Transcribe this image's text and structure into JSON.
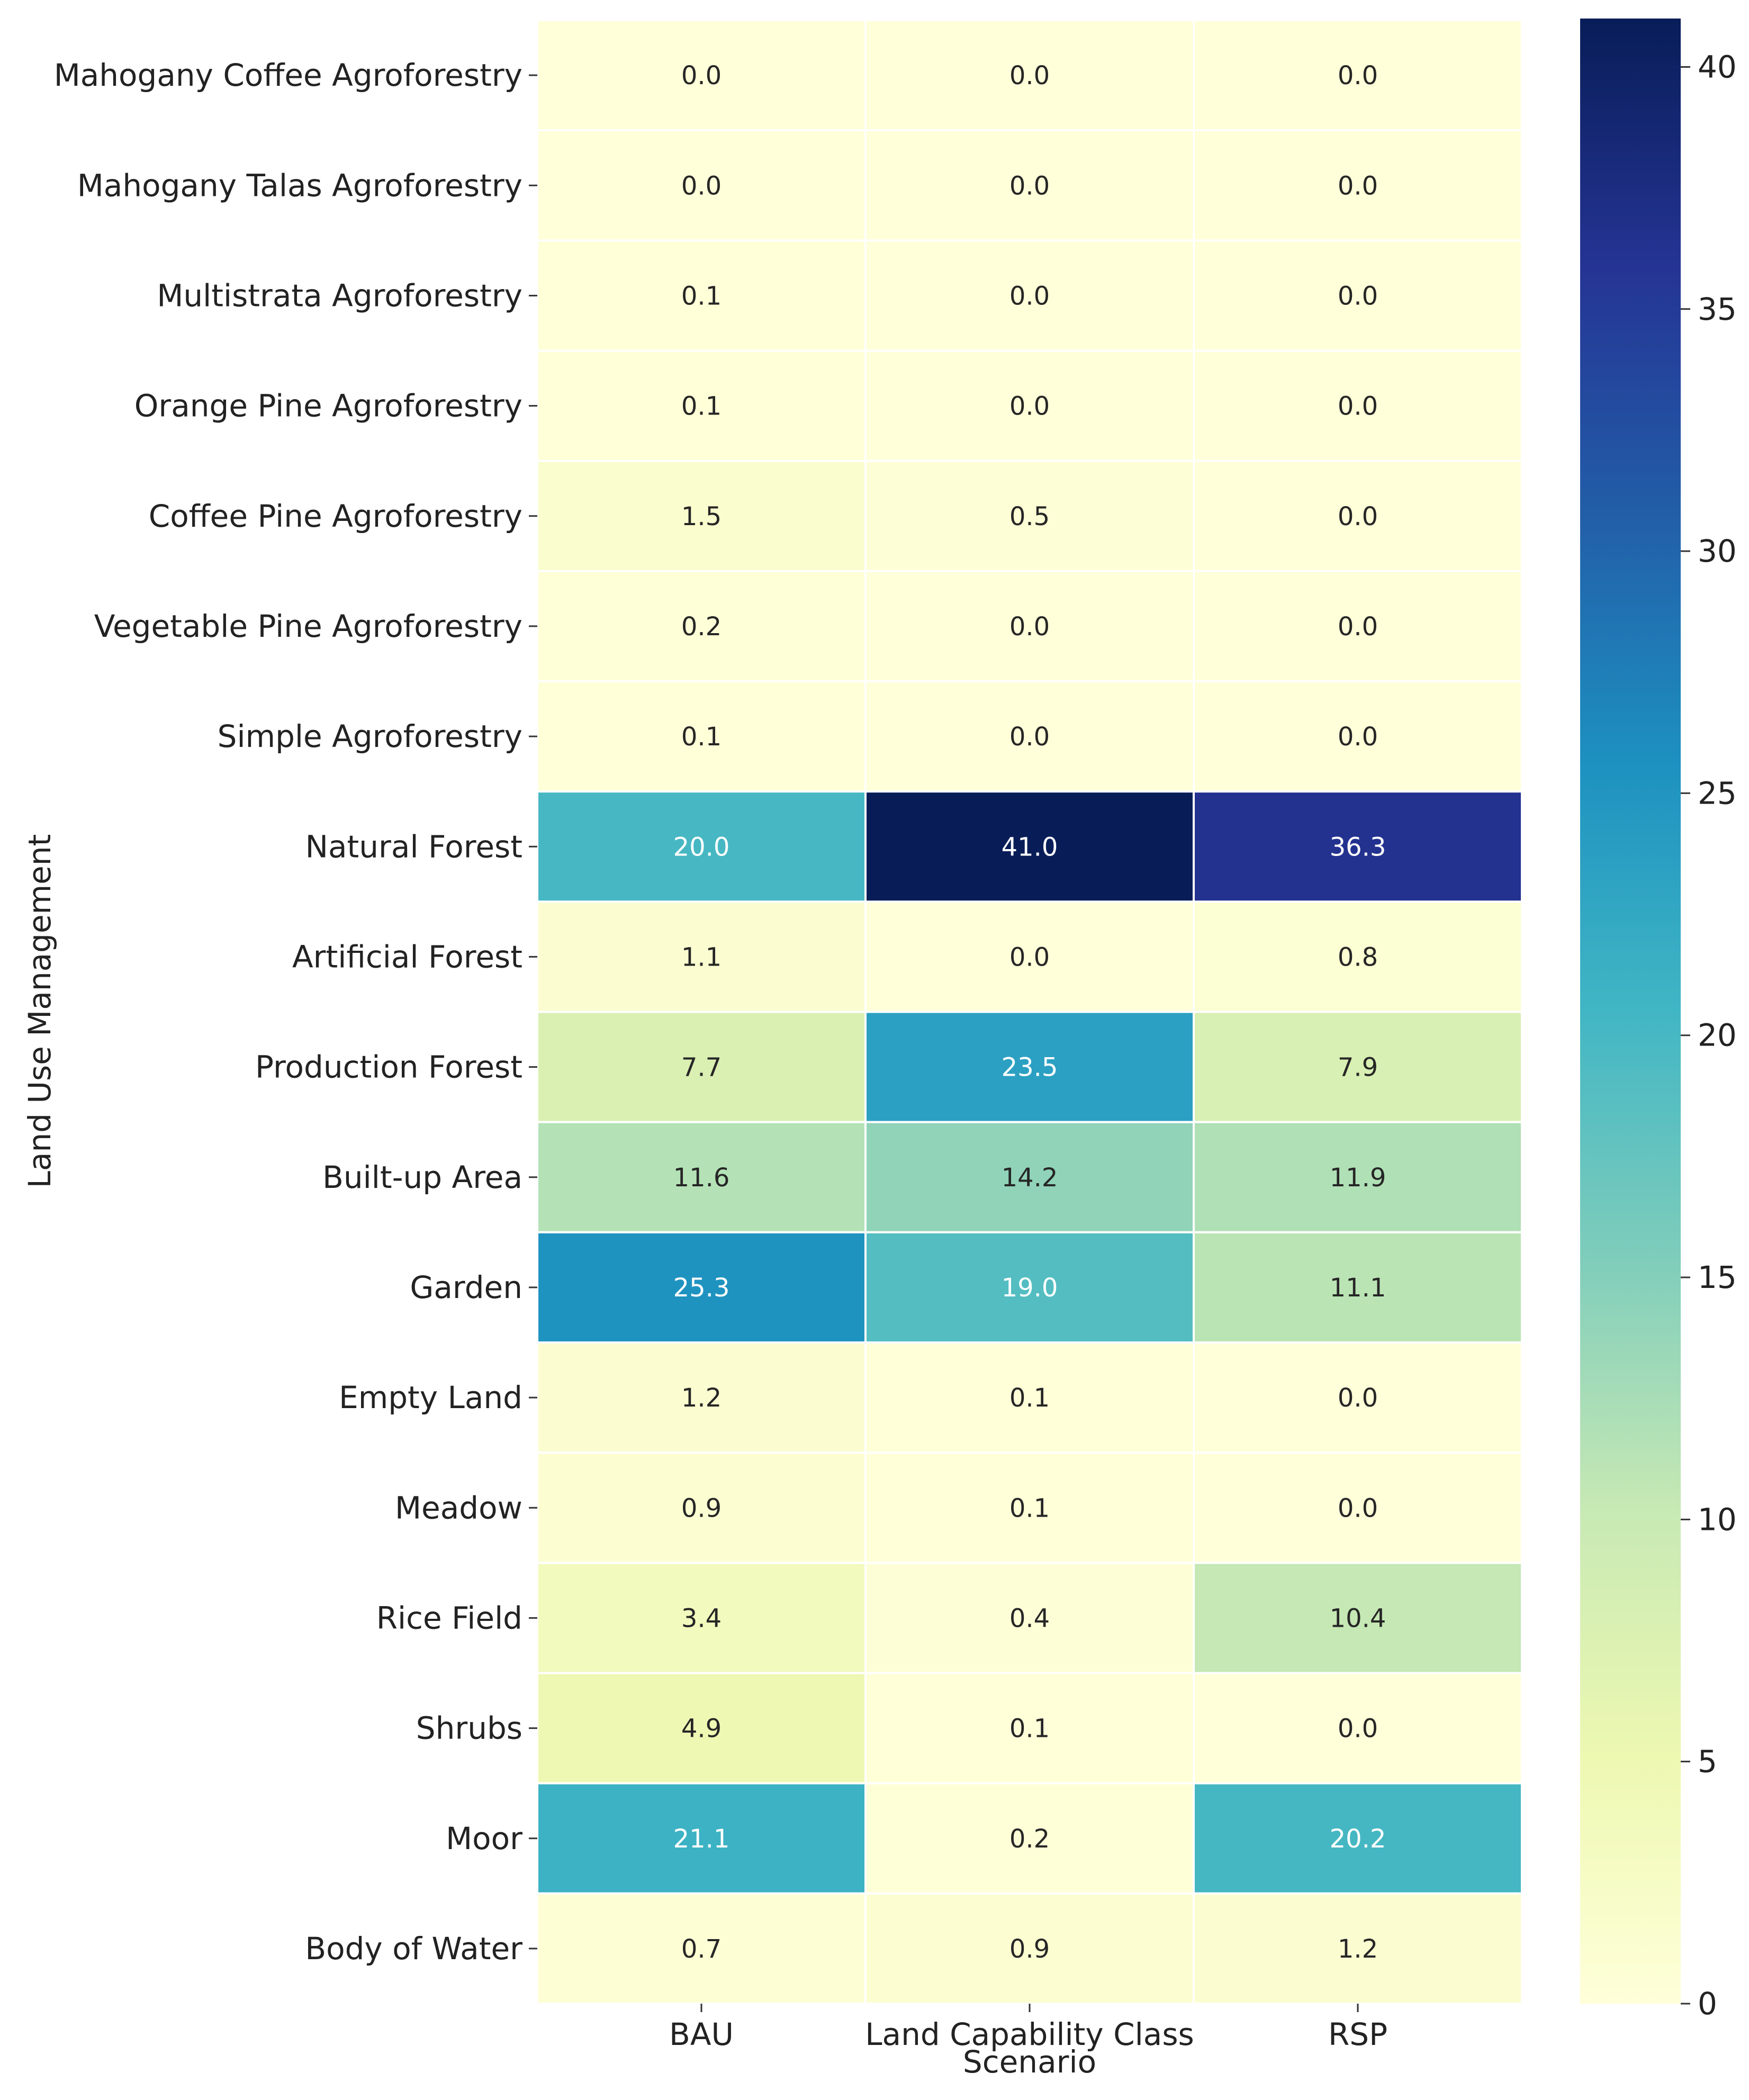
{
  "chart_data": {
    "type": "heatmap",
    "title": "",
    "xlabel": "Scenario",
    "ylabel": "Land Use Management",
    "columns": [
      "BAU",
      "Land Capability Class",
      "RSP"
    ],
    "rows": [
      "Mahogany Coffee Agroforestry",
      "Mahogany Talas Agroforestry",
      "Multistrata Agroforestry",
      "Orange Pine Agroforestry",
      "Coffee Pine Agroforestry",
      "Vegetable Pine Agroforestry",
      "Simple Agroforestry",
      "Natural Forest",
      "Artificial Forest",
      "Production Forest",
      "Built-up Area",
      "Garden",
      "Empty Land",
      "Meadow",
      "Rice Field",
      "Shrubs",
      "Moor",
      "Body of Water"
    ],
    "values": [
      [
        0.0,
        0.0,
        0.0
      ],
      [
        0.0,
        0.0,
        0.0
      ],
      [
        0.1,
        0.0,
        0.0
      ],
      [
        0.1,
        0.0,
        0.0
      ],
      [
        1.5,
        0.5,
        0.0
      ],
      [
        0.2,
        0.0,
        0.0
      ],
      [
        0.1,
        0.0,
        0.0
      ],
      [
        20.0,
        41.0,
        36.3
      ],
      [
        1.1,
        0.0,
        0.8
      ],
      [
        7.7,
        23.5,
        7.9
      ],
      [
        11.6,
        14.2,
        11.9
      ],
      [
        25.3,
        19.0,
        11.1
      ],
      [
        1.2,
        0.1,
        0.0
      ],
      [
        0.9,
        0.1,
        0.0
      ],
      [
        3.4,
        0.4,
        10.4
      ],
      [
        4.9,
        0.1,
        0.0
      ],
      [
        21.1,
        0.2,
        20.2
      ],
      [
        0.7,
        0.9,
        1.2
      ]
    ],
    "value_format": "0.0",
    "colorbar": {
      "colormap": "YlGnBu",
      "range": [
        0,
        41
      ],
      "ticks": [
        0,
        5,
        10,
        15,
        20,
        25,
        30,
        35,
        40
      ]
    },
    "grid": false
  }
}
